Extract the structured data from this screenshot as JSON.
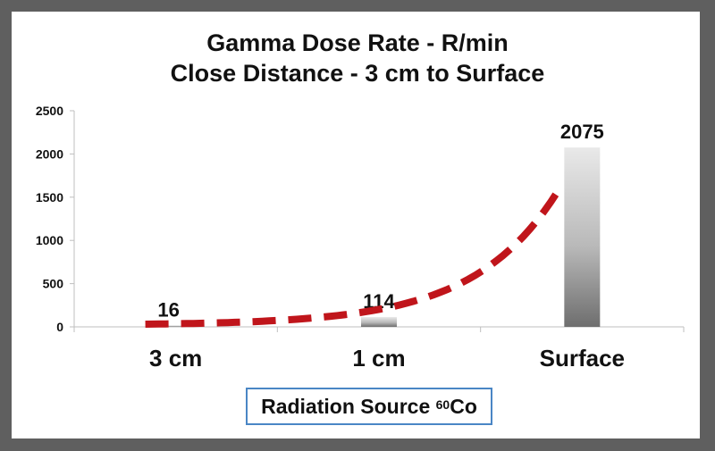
{
  "chart_data": {
    "type": "bar",
    "title": [
      "Gamma Dose Rate - R/min",
      "Close Distance - 3 cm to Surface"
    ],
    "categories": [
      "3 cm",
      "1 cm",
      "Surface"
    ],
    "values": [
      16,
      114,
      2075
    ],
    "data_labels": [
      "16",
      "114",
      "2075"
    ],
    "ylim": [
      0,
      2500
    ],
    "yticks": [
      0,
      500,
      1000,
      1500,
      2000,
      2500
    ],
    "grid": false,
    "trendline": {
      "type": "exponential",
      "style": "dashed",
      "color": "#c0151b"
    },
    "bar_color": "#a8a8a8"
  },
  "source_label": {
    "prefix": "Radiation Source ",
    "mass_number": "60",
    "element": "Co"
  }
}
